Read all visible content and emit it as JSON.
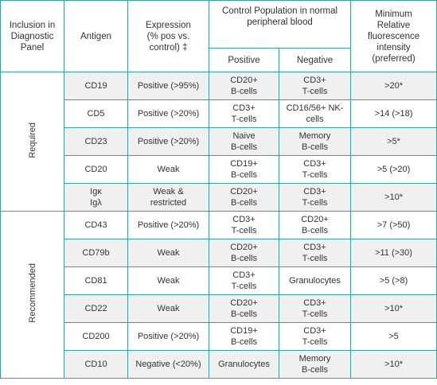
{
  "header": {
    "inclusion": "Inclusion in\nDiagnostic\nPanel",
    "antigen": "Antigen",
    "expression": "Expression\n(% pos vs.\ncontrol) ‡",
    "control_population": "Control Population in normal\nperipheral blood",
    "positive": "Positive",
    "negative": "Negative",
    "mfi": "Minimum\nRelative\nfluorescence\nintensity\n(preferred)"
  },
  "groups": [
    {
      "label": "Required",
      "rows": [
        [
          "CD19",
          "Positive (>95%)",
          "CD20+\nB-cells",
          "CD3+\nT-cells",
          ">20*"
        ],
        [
          "CD5",
          "Positive (>20%)",
          "CD3+\nT-cells",
          "CD16/56+ NK-\ncells",
          ">14 (>18)"
        ],
        [
          "CD23",
          "Positive (>20%)",
          "Naive\nB-cells",
          "Memory\nB-cells",
          ">5*"
        ],
        [
          "CD20",
          "Weak",
          "CD19+\nB-cells",
          "CD3+\nT-cells",
          ">5 (>20)"
        ],
        [
          "Igκ\nIgλ",
          "Weak &\nrestricted",
          "CD20+\nB-cells",
          "CD3+\nT-cells",
          ">10*"
        ]
      ]
    },
    {
      "label": "Recommended",
      "rows": [
        [
          "CD43",
          "Positive (>20%)",
          "CD3+\nT-cells",
          "CD20+\nB-cells",
          ">7 (>50)"
        ],
        [
          "CD79b",
          "Weak",
          "CD20+\nB-cells",
          "CD3+\nT-cells",
          ">11 (>30)"
        ],
        [
          "CD81",
          "Weak",
          "CD3+\nT-cells",
          "Granulocytes",
          ">5 (>8)"
        ],
        [
          "CD22",
          "Weak",
          "CD20+\nB-cells",
          "CD3+\nT-cells",
          ">10*"
        ],
        [
          "CD200",
          "Positive (>20%)",
          "CD19+\nB-cells",
          "CD3+\nT-cells",
          ">5"
        ],
        [
          "CD10",
          "Negative (<20%)",
          "Granulocytes",
          "Memory\nB-cells",
          ">10*"
        ]
      ]
    }
  ]
}
